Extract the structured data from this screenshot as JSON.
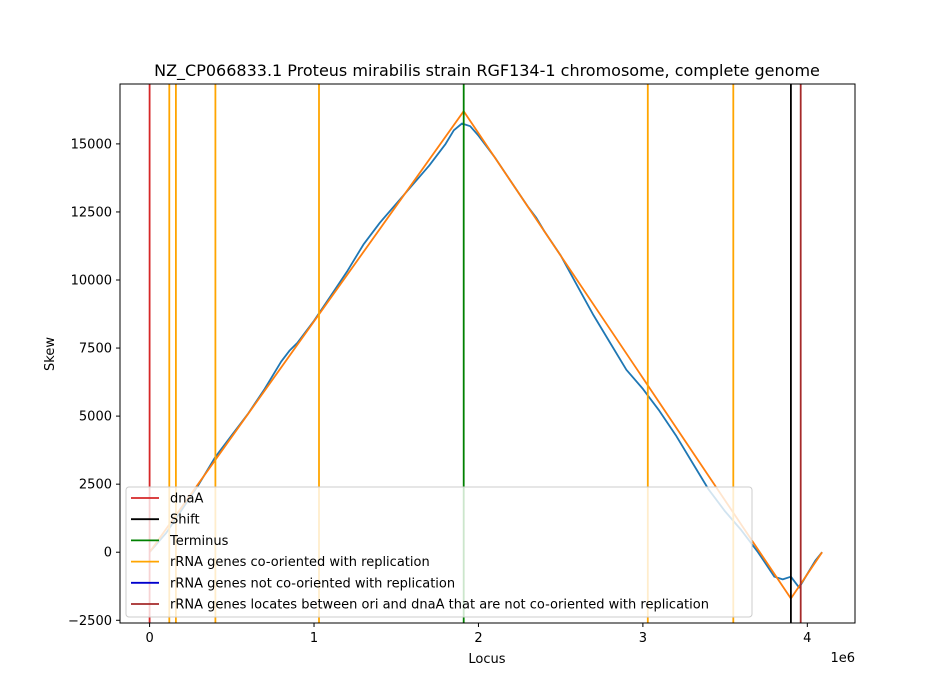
{
  "chart_data": {
    "type": "line",
    "title": "NZ_CP066833.1 Proteus mirabilis strain RGF134-1 chromosome, complete genome",
    "xlabel": "Locus",
    "ylabel": "Skew",
    "x_offset_label": "1e6",
    "xlim": [
      -180000,
      4290000
    ],
    "ylim": [
      -2600,
      17200
    ],
    "xticks": [
      {
        "value": 0,
        "label": "0"
      },
      {
        "value": 1000000,
        "label": "1"
      },
      {
        "value": 2000000,
        "label": "2"
      },
      {
        "value": 3000000,
        "label": "3"
      },
      {
        "value": 4000000,
        "label": "4"
      }
    ],
    "yticks": [
      {
        "value": -2500,
        "label": "−2500"
      },
      {
        "value": 0,
        "label": "0"
      },
      {
        "value": 2500,
        "label": "2500"
      },
      {
        "value": 5000,
        "label": "5000"
      },
      {
        "value": 7500,
        "label": "7500"
      },
      {
        "value": 10000,
        "label": "10000"
      },
      {
        "value": 12500,
        "label": "12500"
      },
      {
        "value": 15000,
        "label": "15000"
      }
    ],
    "grid": false,
    "legend_position": "lower-left",
    "series": [
      {
        "key": "skew",
        "color": "#1f77b4",
        "points": [
          [
            0,
            0
          ],
          [
            100000,
            700
          ],
          [
            200000,
            1600
          ],
          [
            300000,
            2500
          ],
          [
            400000,
            3500
          ],
          [
            500000,
            4300
          ],
          [
            600000,
            5100
          ],
          [
            700000,
            6000
          ],
          [
            800000,
            7000
          ],
          [
            850000,
            7400
          ],
          [
            900000,
            7700
          ],
          [
            1000000,
            8500
          ],
          [
            1100000,
            9400
          ],
          [
            1200000,
            10300
          ],
          [
            1300000,
            11300
          ],
          [
            1400000,
            12100
          ],
          [
            1500000,
            12800
          ],
          [
            1600000,
            13500
          ],
          [
            1700000,
            14200
          ],
          [
            1800000,
            15000
          ],
          [
            1850000,
            15500
          ],
          [
            1900000,
            15750
          ],
          [
            1950000,
            15650
          ],
          [
            2000000,
            15300
          ],
          [
            2100000,
            14500
          ],
          [
            2200000,
            13600
          ],
          [
            2300000,
            12700
          ],
          [
            2350000,
            12300
          ],
          [
            2400000,
            11800
          ],
          [
            2500000,
            10900
          ],
          [
            2600000,
            9800
          ],
          [
            2700000,
            8700
          ],
          [
            2800000,
            7700
          ],
          [
            2900000,
            6700
          ],
          [
            3000000,
            6000
          ],
          [
            3100000,
            5200
          ],
          [
            3200000,
            4300
          ],
          [
            3300000,
            3300
          ],
          [
            3400000,
            2300
          ],
          [
            3500000,
            1500
          ],
          [
            3600000,
            800
          ],
          [
            3700000,
            0
          ],
          [
            3800000,
            -900
          ],
          [
            3850000,
            -1000
          ],
          [
            3900000,
            -900
          ],
          [
            3950000,
            -1300
          ],
          [
            4000000,
            -800
          ],
          [
            4050000,
            -300
          ],
          [
            4090000,
            0
          ]
        ]
      },
      {
        "key": "fit",
        "color": "#ff7f0e",
        "points": [
          [
            0,
            0
          ],
          [
            1910000,
            16200
          ],
          [
            3900000,
            -1700
          ],
          [
            4090000,
            0
          ]
        ]
      }
    ],
    "vlines": [
      {
        "x": 0,
        "color": "#d62728",
        "kind": "dnaA"
      },
      {
        "x": 3900000,
        "color": "#000000",
        "kind": "Shift"
      },
      {
        "x": 1910000,
        "color": "#008000",
        "kind": "Terminus"
      },
      {
        "x": 120000,
        "color": "#ffa500",
        "kind": "co-oriented"
      },
      {
        "x": 160000,
        "color": "#ffa500",
        "kind": "co-oriented"
      },
      {
        "x": 400000,
        "color": "#ffa500",
        "kind": "co-oriented"
      },
      {
        "x": 1030000,
        "color": "#ffa500",
        "kind": "co-oriented"
      },
      {
        "x": 3030000,
        "color": "#ffa500",
        "kind": "co-oriented"
      },
      {
        "x": 3550000,
        "color": "#ffa500",
        "kind": "co-oriented"
      },
      {
        "x": 3960000,
        "color": "#a52a2a",
        "kind": "between-ori-dnaA"
      }
    ],
    "legend": [
      {
        "label": "dnaA",
        "color": "#d62728"
      },
      {
        "label": "Shift",
        "color": "#000000"
      },
      {
        "label": "Terminus",
        "color": "#008000"
      },
      {
        "label": "rRNA genes co-oriented with replication",
        "color": "#ffa500"
      },
      {
        "label": "rRNA genes not co-oriented with replication",
        "color": "#0000cd"
      },
      {
        "label": "rRNA genes locates between ori and dnaA that are not co-oriented with replication",
        "color": "#a52a2a"
      }
    ]
  }
}
